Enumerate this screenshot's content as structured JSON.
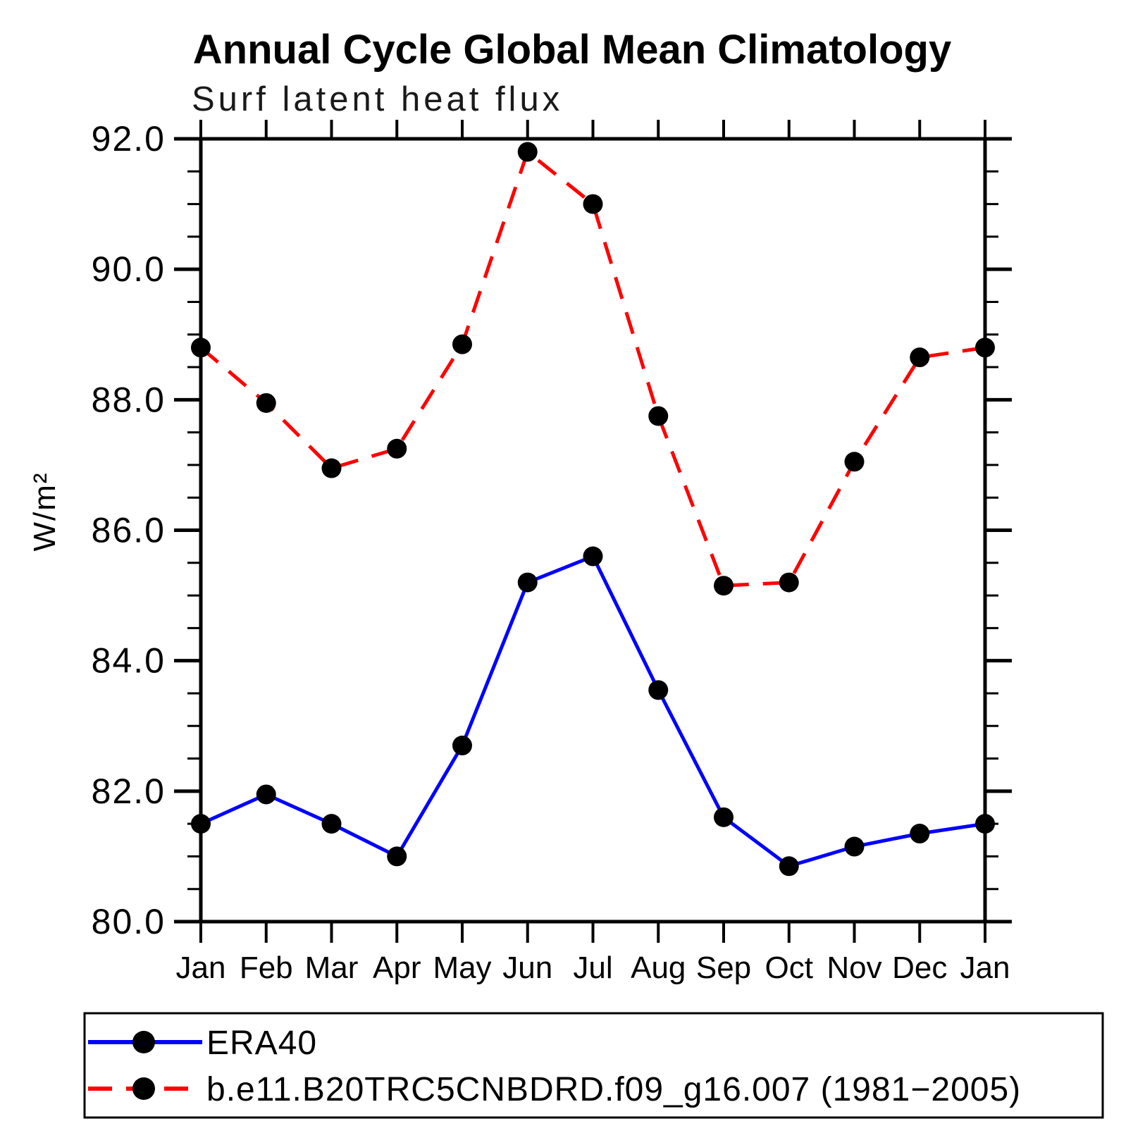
{
  "chart_data": {
    "type": "line",
    "title": "Annual Cycle Global Mean Climatology",
    "subtitle": "Surf latent heat flux",
    "ylabel": "W/m²",
    "categories": [
      "Jan",
      "Feb",
      "Mar",
      "Apr",
      "May",
      "Jun",
      "Jul",
      "Aug",
      "Sep",
      "Oct",
      "Nov",
      "Dec",
      "Jan"
    ],
    "ylim": [
      80.0,
      92.0
    ],
    "y_major_step": 2.0,
    "y_minor_step": 0.5,
    "y_tick_labels": [
      "80.0",
      "82.0",
      "84.0",
      "86.0",
      "88.0",
      "90.0",
      "92.0"
    ],
    "grid": false,
    "legend_position": "bottom-left-box",
    "marker": "filled-circle",
    "marker_color": "#000000",
    "axis_color": "#000000",
    "series": [
      {
        "name": "ERA40",
        "color": "#0000ff",
        "line_style": "solid",
        "values": [
          81.5,
          81.95,
          81.5,
          81.0,
          82.7,
          85.2,
          85.6,
          83.55,
          81.6,
          80.85,
          81.15,
          81.35,
          81.5
        ]
      },
      {
        "name": "b.e11.B20TRC5CNBDRD.f09_g16.007 (1981−2005)",
        "color": "#ff0000",
        "line_style": "dashed",
        "values": [
          88.8,
          87.95,
          86.95,
          87.25,
          88.85,
          91.8,
          91.0,
          87.75,
          85.15,
          85.2,
          87.05,
          88.65,
          88.8
        ]
      }
    ]
  }
}
